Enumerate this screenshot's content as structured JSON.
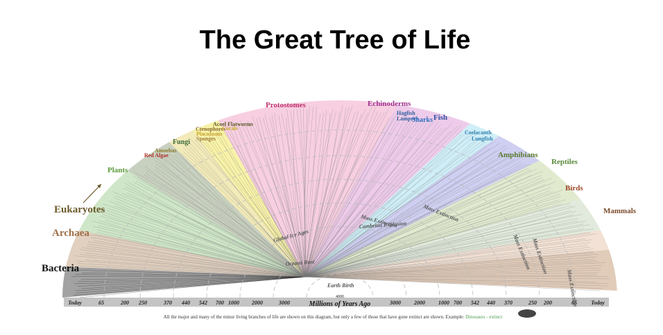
{
  "title": "The Great Tree of Life",
  "groups": [
    "Bacteria",
    "Archaea",
    "Eukaryotes",
    "Plants",
    "Amoebas",
    "Red Algae",
    "Fungi",
    "Ctenophores",
    "Placozoans",
    "Sponges",
    "Acoel Flatworms",
    "Corals",
    "Protostomes",
    "Echinoderms",
    "Hagfish",
    "Lamprey",
    "Sharks",
    "Fish",
    "Coelacanth",
    "Lungfish",
    "Amphibians",
    "Reptiles",
    "Birds",
    "Mammals"
  ],
  "events": [
    "Global Ice Ages",
    "Mass Extinction",
    "Cambrian Explosion",
    "Mass Extinction",
    "Mass Extinction",
    "Mass Extinction",
    "Mass Extinction",
    "Oceans Rust",
    "Earth Birth"
  ],
  "timeline": {
    "left": [
      "Today",
      65,
      200,
      250,
      370,
      440,
      542,
      700,
      1000,
      2000,
      3000
    ],
    "center": 4000,
    "axis_label": "Millions of Years Ago",
    "right": [
      3000,
      2000,
      1000,
      700,
      542,
      440,
      370,
      250,
      200,
      65,
      "Today"
    ]
  },
  "caption": {
    "text": "All the major and many of the minor living branches of life are shown on this diagram, but only a few of those that have gone extinct are shown. Example:",
    "highlight": "Dinosaurs - extinct"
  }
}
